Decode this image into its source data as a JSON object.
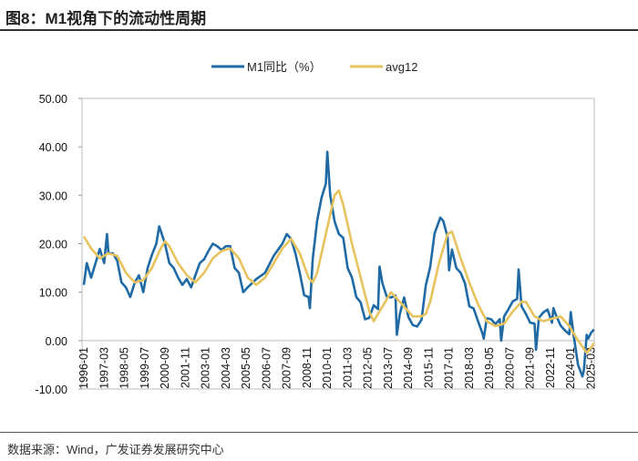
{
  "header": {
    "title": "图8：M1视角下的流动性周期"
  },
  "footer": {
    "source": "数据来源：Wind，广发证券发展研究中心"
  },
  "chart_data": {
    "type": "line",
    "title": "",
    "xlabel": "",
    "ylabel": "",
    "ylim": [
      -10,
      50
    ],
    "yticks": [
      "50.00",
      "40.00",
      "30.00",
      "20.00",
      "10.00",
      "0.00",
      "-10.00"
    ],
    "xticks": [
      "1996-01",
      "1997-03",
      "1998-05",
      "1999-07",
      "2000-09",
      "2001-11",
      "2003-01",
      "2004-03",
      "2005-05",
      "2006-07",
      "2007-09",
      "2008-11",
      "2010-01",
      "2011-03",
      "2012-05",
      "2013-07",
      "2014-09",
      "2015-11",
      "2017-01",
      "2018-03",
      "2019-05",
      "2020-07",
      "2021-09",
      "2022-11",
      "2024-01",
      "2025-03"
    ],
    "grid": false,
    "legend": "top-center",
    "series": [
      {
        "name": "M1同比（%）",
        "color": "#1f6aa5",
        "points": [
          [
            "1996-01",
            11.5
          ],
          [
            "1996-03",
            16
          ],
          [
            "1996-06",
            13
          ],
          [
            "1996-12",
            18.9
          ],
          [
            "1997-03",
            16
          ],
          [
            "1997-05",
            22
          ],
          [
            "1997-06",
            18
          ],
          [
            "1997-09",
            18
          ],
          [
            "1997-12",
            16.5
          ],
          [
            "1998-03",
            12
          ],
          [
            "1998-06",
            11
          ],
          [
            "1998-09",
            9
          ],
          [
            "1998-12",
            11.9
          ],
          [
            "1999-03",
            13.5
          ],
          [
            "1999-06",
            10
          ],
          [
            "1999-09",
            15
          ],
          [
            "1999-12",
            17.7
          ],
          [
            "2000-03",
            20
          ],
          [
            "2000-05",
            23.6
          ],
          [
            "2000-09",
            20
          ],
          [
            "2000-12",
            16
          ],
          [
            "2001-03",
            15
          ],
          [
            "2001-06",
            13
          ],
          [
            "2001-09",
            11.5
          ],
          [
            "2001-12",
            12.7
          ],
          [
            "2002-03",
            11
          ],
          [
            "2002-06",
            13.5
          ],
          [
            "2002-09",
            16
          ],
          [
            "2002-12",
            16.8
          ],
          [
            "2003-03",
            18.5
          ],
          [
            "2003-06",
            20
          ],
          [
            "2003-09",
            19.5
          ],
          [
            "2003-12",
            18.7
          ],
          [
            "2004-03",
            19.5
          ],
          [
            "2004-06",
            19.5
          ],
          [
            "2004-09",
            15
          ],
          [
            "2004-12",
            14
          ],
          [
            "2005-03",
            10
          ],
          [
            "2005-06",
            11
          ],
          [
            "2005-12",
            12.7
          ],
          [
            "2006-06",
            14
          ],
          [
            "2006-12",
            17.5
          ],
          [
            "2007-06",
            20
          ],
          [
            "2007-09",
            22
          ],
          [
            "2007-12",
            21
          ],
          [
            "2008-03",
            18
          ],
          [
            "2008-06",
            14
          ],
          [
            "2008-09",
            9.4
          ],
          [
            "2008-12",
            9
          ],
          [
            "2009-01",
            6.7
          ],
          [
            "2009-03",
            17
          ],
          [
            "2009-06",
            24.8
          ],
          [
            "2009-09",
            29.5
          ],
          [
            "2009-12",
            32.4
          ],
          [
            "2010-01",
            39
          ],
          [
            "2010-03",
            30
          ],
          [
            "2010-06",
            24.6
          ],
          [
            "2010-09",
            22
          ],
          [
            "2010-12",
            21.2
          ],
          [
            "2011-03",
            15
          ],
          [
            "2011-06",
            13
          ],
          [
            "2011-09",
            9
          ],
          [
            "2011-12",
            7.9
          ],
          [
            "2012-03",
            4.4
          ],
          [
            "2012-06",
            4.7
          ],
          [
            "2012-09",
            7.3
          ],
          [
            "2012-12",
            6.5
          ],
          [
            "2013-01",
            15.3
          ],
          [
            "2013-03",
            11.9
          ],
          [
            "2013-06",
            9.1
          ],
          [
            "2013-09",
            8.9
          ],
          [
            "2013-12",
            9.3
          ],
          [
            "2014-01",
            1.2
          ],
          [
            "2014-03",
            5.4
          ],
          [
            "2014-06",
            8.9
          ],
          [
            "2014-09",
            4.8
          ],
          [
            "2014-12",
            3.2
          ],
          [
            "2015-03",
            2.9
          ],
          [
            "2015-06",
            4.3
          ],
          [
            "2015-09",
            11.4
          ],
          [
            "2015-12",
            15.2
          ],
          [
            "2016-03",
            22.1
          ],
          [
            "2016-07",
            25.4
          ],
          [
            "2016-09",
            24.7
          ],
          [
            "2016-12",
            21.4
          ],
          [
            "2017-01",
            14.5
          ],
          [
            "2017-03",
            18.8
          ],
          [
            "2017-06",
            15
          ],
          [
            "2017-09",
            14
          ],
          [
            "2017-12",
            11.8
          ],
          [
            "2018-03",
            7.1
          ],
          [
            "2018-06",
            6.6
          ],
          [
            "2018-09",
            4
          ],
          [
            "2018-12",
            1.5
          ],
          [
            "2019-01",
            0.4
          ],
          [
            "2019-03",
            4.6
          ],
          [
            "2019-06",
            4.4
          ],
          [
            "2019-09",
            3.4
          ],
          [
            "2019-12",
            4.4
          ],
          [
            "2020-01",
            0
          ],
          [
            "2020-03",
            5
          ],
          [
            "2020-06",
            6.5
          ],
          [
            "2020-09",
            8.1
          ],
          [
            "2020-12",
            8.6
          ],
          [
            "2021-01",
            14.7
          ],
          [
            "2021-03",
            7.1
          ],
          [
            "2021-06",
            5.5
          ],
          [
            "2021-09",
            3.7
          ],
          [
            "2021-12",
            3.5
          ],
          [
            "2022-01",
            -1.9
          ],
          [
            "2022-03",
            4.7
          ],
          [
            "2022-06",
            5.8
          ],
          [
            "2022-09",
            6.4
          ],
          [
            "2022-12",
            3.7
          ],
          [
            "2023-01",
            6.7
          ],
          [
            "2023-03",
            5.1
          ],
          [
            "2023-06",
            3.1
          ],
          [
            "2023-09",
            2.1
          ],
          [
            "2023-12",
            1.3
          ],
          [
            "2024-01",
            5.9
          ],
          [
            "2024-03",
            1.1
          ],
          [
            "2024-06",
            -5
          ],
          [
            "2024-09",
            -7.4
          ],
          [
            "2024-10",
            -6.1
          ],
          [
            "2024-12",
            1.2
          ],
          [
            "2025-01",
            0.4
          ],
          [
            "2025-03",
            1.6
          ],
          [
            "2025-05",
            2.3
          ]
        ]
      },
      {
        "name": "avg12",
        "color": "#e6c35c",
        "points": [
          [
            "1996-01",
            21.5
          ],
          [
            "1996-06",
            19
          ],
          [
            "1996-12",
            17
          ],
          [
            "1997-06",
            18
          ],
          [
            "1997-12",
            17.5
          ],
          [
            "1998-06",
            14
          ],
          [
            "1998-12",
            12
          ],
          [
            "1999-06",
            12.5
          ],
          [
            "1999-12",
            15
          ],
          [
            "2000-06",
            19
          ],
          [
            "2000-09",
            20.5
          ],
          [
            "2000-12",
            19.5
          ],
          [
            "2001-06",
            16
          ],
          [
            "2001-12",
            13.5
          ],
          [
            "2002-06",
            12
          ],
          [
            "2002-12",
            14
          ],
          [
            "2003-06",
            17
          ],
          [
            "2003-12",
            18.5
          ],
          [
            "2004-06",
            19
          ],
          [
            "2004-12",
            17
          ],
          [
            "2005-06",
            13
          ],
          [
            "2005-12",
            11.5
          ],
          [
            "2006-06",
            13
          ],
          [
            "2006-12",
            16
          ],
          [
            "2007-06",
            19
          ],
          [
            "2007-12",
            21
          ],
          [
            "2008-06",
            18
          ],
          [
            "2008-12",
            13
          ],
          [
            "2009-03",
            12
          ],
          [
            "2009-06",
            14
          ],
          [
            "2009-12",
            22
          ],
          [
            "2010-06",
            30
          ],
          [
            "2010-09",
            31
          ],
          [
            "2010-12",
            28
          ],
          [
            "2011-06",
            20
          ],
          [
            "2011-12",
            13
          ],
          [
            "2012-06",
            6
          ],
          [
            "2012-09",
            4
          ],
          [
            "2012-12",
            5.5
          ],
          [
            "2013-06",
            8.5
          ],
          [
            "2013-09",
            10
          ],
          [
            "2013-12",
            9
          ],
          [
            "2014-06",
            7
          ],
          [
            "2014-12",
            5
          ],
          [
            "2015-06",
            5
          ],
          [
            "2015-09",
            5.5
          ],
          [
            "2015-12",
            8
          ],
          [
            "2016-06",
            16
          ],
          [
            "2016-12",
            22
          ],
          [
            "2017-03",
            22.5
          ],
          [
            "2017-09",
            17
          ],
          [
            "2018-03",
            12
          ],
          [
            "2018-09",
            7.5
          ],
          [
            "2019-03",
            4
          ],
          [
            "2019-09",
            3
          ],
          [
            "2020-03",
            3.5
          ],
          [
            "2020-09",
            6
          ],
          [
            "2021-03",
            8
          ],
          [
            "2021-06",
            8
          ],
          [
            "2021-12",
            5
          ],
          [
            "2022-06",
            4
          ],
          [
            "2022-12",
            4.5
          ],
          [
            "2023-06",
            5
          ],
          [
            "2023-12",
            3
          ],
          [
            "2024-06",
            0
          ],
          [
            "2024-12",
            -2.5
          ],
          [
            "2025-03",
            -1.5
          ],
          [
            "2025-05",
            -0.5
          ]
        ]
      }
    ]
  }
}
